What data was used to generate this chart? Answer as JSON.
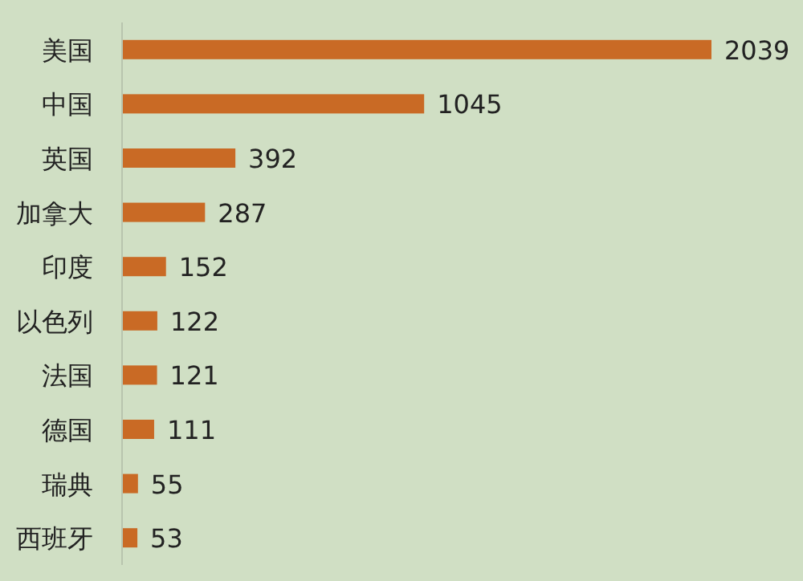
{
  "chart_data": {
    "type": "bar",
    "orientation": "horizontal",
    "categories": [
      "美国",
      "中国",
      "英国",
      "加拿大",
      "印度",
      "以色列",
      "法国",
      "德国",
      "瑞典",
      "西班牙"
    ],
    "values": [
      2039,
      1045,
      392,
      287,
      152,
      122,
      121,
      111,
      55,
      53
    ],
    "color": "#c96a25",
    "data_labels": true
  }
}
